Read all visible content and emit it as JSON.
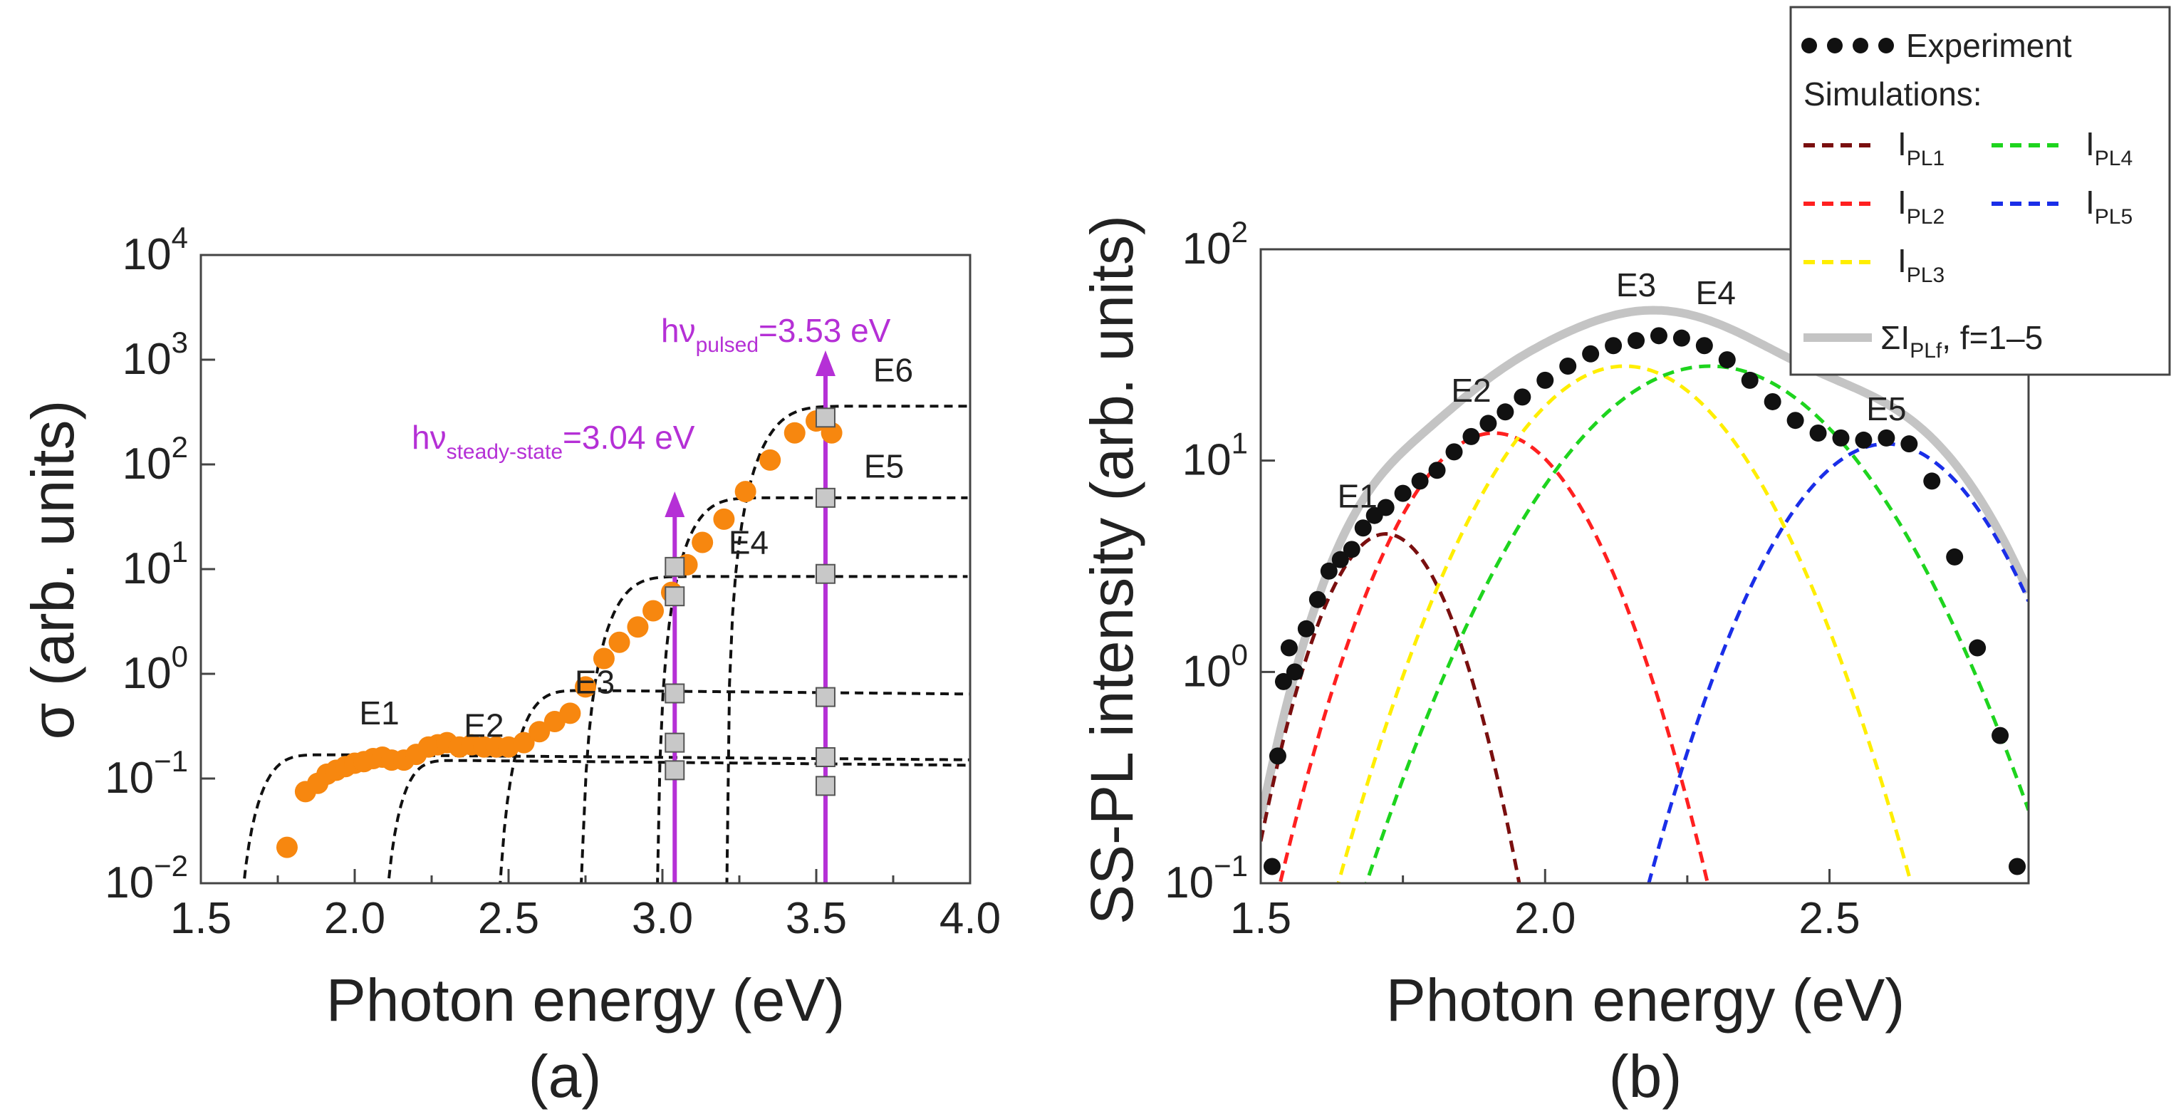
{
  "chart_data": [
    {
      "type": "scatter",
      "panel_label": "(a)",
      "xlabel": "Photon energy (eV)",
      "ylabel": "σ (arb. units)",
      "xlim": [
        1.5,
        4.0
      ],
      "ylim": [
        0.01,
        10000
      ],
      "yscale": "log",
      "x_ticks": [
        1.5,
        2.0,
        2.5,
        3.0,
        3.5,
        4.0
      ],
      "x_tick_labels": [
        "1.5",
        "2.0",
        "2.5",
        "3.0",
        "3.5",
        "4.0"
      ],
      "y_ticks": [
        0.01,
        0.1,
        1,
        10,
        100,
        1000,
        10000
      ],
      "y_tick_labels": [
        {
          "base": "10",
          "exp": "−2"
        },
        {
          "base": "10",
          "exp": "−1"
        },
        {
          "base": "10",
          "exp": "0"
        },
        {
          "base": "10",
          "exp": "1"
        },
        {
          "base": "10",
          "exp": "2"
        },
        {
          "base": "10",
          "exp": "3"
        },
        {
          "base": "10",
          "exp": "4"
        }
      ],
      "colors": {
        "experiment": "#f7870f",
        "fits": "#111111",
        "arrows": "#b530d6",
        "squares": "#c8c8c8"
      },
      "experiment": {
        "name": "Experiment",
        "x": [
          1.78,
          1.84,
          1.88,
          1.91,
          1.94,
          1.97,
          2.0,
          2.03,
          2.06,
          2.09,
          2.12,
          2.16,
          2.2,
          2.24,
          2.27,
          2.3,
          2.34,
          2.38,
          2.42,
          2.46,
          2.5,
          2.55,
          2.6,
          2.65,
          2.7,
          2.75,
          2.81,
          2.86,
          2.92,
          2.97,
          3.03,
          3.08,
          3.13,
          3.2,
          3.27,
          3.35,
          3.43,
          3.5,
          3.55
        ],
        "y": [
          0.022,
          0.075,
          0.09,
          0.11,
          0.12,
          0.13,
          0.14,
          0.145,
          0.155,
          0.16,
          0.15,
          0.15,
          0.17,
          0.2,
          0.21,
          0.22,
          0.2,
          0.21,
          0.2,
          0.2,
          0.2,
          0.22,
          0.28,
          0.35,
          0.42,
          0.75,
          1.4,
          2.0,
          2.8,
          4.0,
          6.0,
          11.0,
          18.0,
          30.0,
          55.0,
          110.0,
          200.0,
          260.0,
          200.0
        ]
      },
      "fit_curves": [
        {
          "name": "E1",
          "x0": 1.75,
          "plateau": 0.17,
          "slope": 0.05,
          "width": 0.12
        },
        {
          "name": "E2",
          "x0": 2.2,
          "plateau": 0.15,
          "slope": 0.06,
          "width": 0.1
        },
        {
          "name": "E3",
          "x0": 2.6,
          "plateau": 0.7,
          "slope": 0.06,
          "width": 0.12
        },
        {
          "name": "E4",
          "x0": 2.9,
          "plateau": 8.5,
          "slope": 0.0,
          "width": 0.14
        },
        {
          "name": "E5",
          "x0": 3.15,
          "plateau": 48.0,
          "slope": 0.0,
          "width": 0.14
        },
        {
          "name": "E6",
          "x0": 3.4,
          "plateau": 360.0,
          "slope": 0.0,
          "width": 0.16
        }
      ],
      "square_markers": {
        "x_3_04": [
          0.12,
          0.22,
          0.65,
          5.5,
          10.5
        ],
        "x_3_53": [
          0.085,
          0.16,
          0.6,
          9.0,
          48.0,
          280.0
        ]
      },
      "peak_labels": [
        {
          "text": "E1",
          "x": 2.08,
          "y": 0.33
        },
        {
          "text": "E2",
          "x": 2.42,
          "y": 0.25
        },
        {
          "text": "E3",
          "x": 2.78,
          "y": 0.65
        },
        {
          "text": "E4",
          "x": 3.28,
          "y": 14.0
        },
        {
          "text": "E5",
          "x": 3.72,
          "y": 75.0
        },
        {
          "text": "E6",
          "x": 3.75,
          "y": 620.0
        }
      ],
      "annotations": [
        {
          "main": "hν",
          "sub": "steady-state",
          "rest": "=3.04 eV",
          "x": 3.04
        },
        {
          "main": "hν",
          "sub": "pulsed",
          "rest": "=3.53 eV",
          "x": 3.53
        }
      ]
    },
    {
      "type": "scatter",
      "panel_label": "(b)",
      "xlabel": "Photon energy (eV)",
      "ylabel": "SS-PL intensity (arb. units)",
      "xlim": [
        1.5,
        2.85
      ],
      "ylim": [
        0.1,
        100
      ],
      "yscale": "log",
      "x_ticks": [
        1.5,
        2.0,
        2.5
      ],
      "x_tick_labels": [
        "1.5",
        "2.0",
        "2.5"
      ],
      "y_ticks": [
        0.1,
        1,
        10,
        100
      ],
      "y_tick_labels": [
        {
          "base": "10",
          "exp": "−1"
        },
        {
          "base": "10",
          "exp": "0"
        },
        {
          "base": "10",
          "exp": "1"
        },
        {
          "base": "10",
          "exp": "2"
        }
      ],
      "experiment": {
        "name": "Experiment",
        "x": [
          1.52,
          1.53,
          1.54,
          1.55,
          1.56,
          1.58,
          1.6,
          1.62,
          1.64,
          1.66,
          1.68,
          1.7,
          1.72,
          1.75,
          1.78,
          1.81,
          1.84,
          1.87,
          1.9,
          1.93,
          1.96,
          2.0,
          2.04,
          2.08,
          2.12,
          2.16,
          2.2,
          2.24,
          2.28,
          2.32,
          2.36,
          2.4,
          2.44,
          2.48,
          2.52,
          2.56,
          2.6,
          2.64,
          2.68,
          2.72,
          2.76,
          2.8,
          2.83
        ],
        "y": [
          0.12,
          0.4,
          0.9,
          1.3,
          1.0,
          1.6,
          2.2,
          3.0,
          3.4,
          3.8,
          4.8,
          5.5,
          6.0,
          7.0,
          8.0,
          9.0,
          11.0,
          13.0,
          15.0,
          17.0,
          20.0,
          24.0,
          28.0,
          32.0,
          35.0,
          37.0,
          39.0,
          38.0,
          35.0,
          30.0,
          24.0,
          19.0,
          15.5,
          13.5,
          12.8,
          12.5,
          12.8,
          12.0,
          8.0,
          3.5,
          1.3,
          0.5,
          0.12
        ]
      },
      "simulations": [
        {
          "name": "I",
          "sub": "PL1",
          "center": 1.72,
          "peak": 4.5,
          "sigma": 0.085,
          "color": "#7a0f0f"
        },
        {
          "name": "I",
          "sub": "PL2",
          "center": 1.91,
          "peak": 13.5,
          "sigma": 0.12,
          "color": "#ff2020"
        },
        {
          "name": "I",
          "sub": "PL3",
          "center": 2.14,
          "peak": 28.0,
          "sigma": 0.15,
          "color": "#ffee00"
        },
        {
          "name": "I",
          "sub": "PL4",
          "center": 2.29,
          "peak": 28.0,
          "sigma": 0.18,
          "color": "#1ed41e"
        },
        {
          "name": "I",
          "sub": "PL5",
          "center": 2.6,
          "peak": 12.0,
          "sigma": 0.135,
          "color": "#1a2ee8"
        }
      ],
      "sum_curve": {
        "name": "ΣI",
        "sub": "PLf",
        "rest": ", f=1–5",
        "color": "#c4c4c4"
      },
      "peak_labels": [
        {
          "text": "E1",
          "x": 1.67,
          "y": 6.0
        },
        {
          "text": "E2",
          "x": 1.87,
          "y": 19.0
        },
        {
          "text": "E3",
          "x": 2.16,
          "y": 60.0
        },
        {
          "text": "E4",
          "x": 2.3,
          "y": 55.0
        },
        {
          "text": "E5",
          "x": 2.6,
          "y": 15.5
        }
      ],
      "legend": {
        "title": "Simulations:",
        "experiment_label": "Experiment"
      }
    }
  ]
}
